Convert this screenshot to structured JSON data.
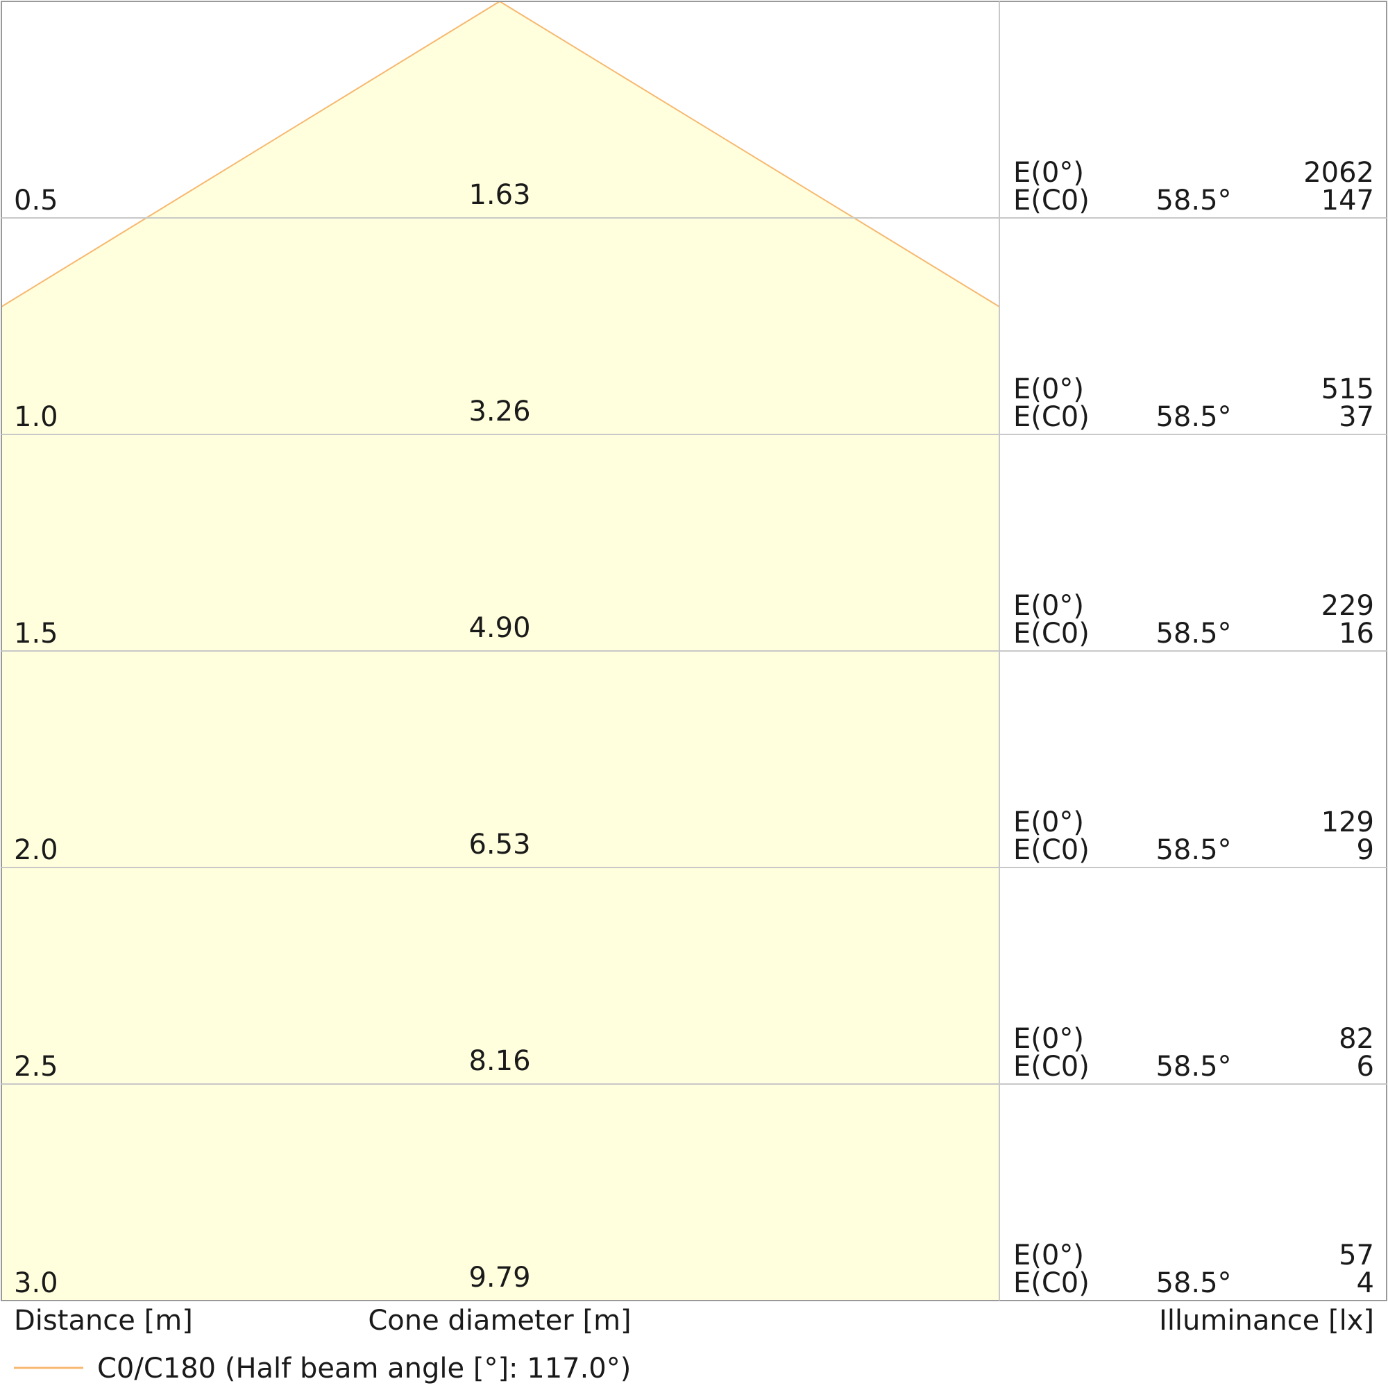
{
  "chart_data": {
    "type": "cone_diagram",
    "axis_labels": {
      "distance": "Distance [m]",
      "cone_diameter": "Cone diameter [m]",
      "illuminance": "Illuminance [lx]"
    },
    "legend": {
      "label": "C0/C180 (Half beam angle [°]: 117.0°)"
    },
    "half_beam_angle_deg": 117.0,
    "row_labels": {
      "e0": "E(0°)",
      "ec0": "E(C0)"
    },
    "rows": [
      {
        "distance": "0.5",
        "diameter": "1.63",
        "angle": "58.5°",
        "e0": "2062",
        "ec0": "147"
      },
      {
        "distance": "1.0",
        "diameter": "3.26",
        "angle": "58.5°",
        "e0": "515",
        "ec0": "37"
      },
      {
        "distance": "1.5",
        "diameter": "4.90",
        "angle": "58.5°",
        "e0": "229",
        "ec0": "16"
      },
      {
        "distance": "2.0",
        "diameter": "6.53",
        "angle": "58.5°",
        "e0": "129",
        "ec0": "9"
      },
      {
        "distance": "2.5",
        "diameter": "8.16",
        "angle": "58.5°",
        "e0": "82",
        "ec0": "6"
      },
      {
        "distance": "3.0",
        "diameter": "9.79",
        "angle": "58.5°",
        "e0": "57",
        "ec0": "4"
      }
    ],
    "colors": {
      "cone_fill": "#ffffde",
      "cone_stroke": "#f7b870",
      "grid": "#c8c8c8",
      "text": "#1a1a1a"
    }
  }
}
